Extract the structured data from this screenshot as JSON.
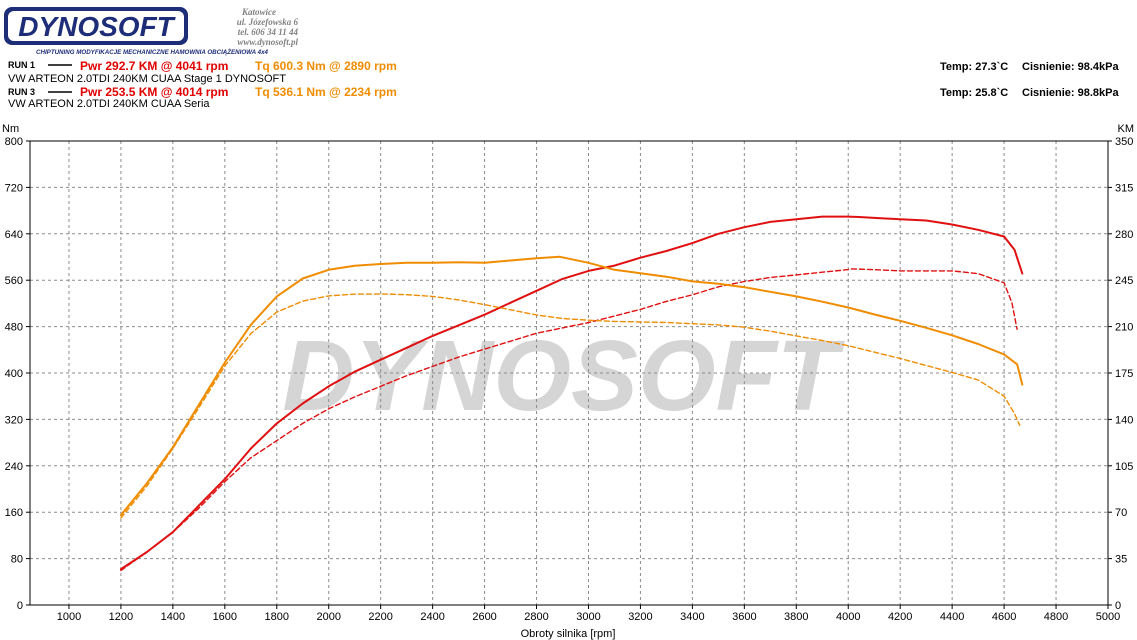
{
  "logo": {
    "brand": "DYNOSOFT",
    "city": "Katowice",
    "street": "ul. Józefowska 6",
    "phone": "tel. 606 34 11 44",
    "web": "www.dynosoft.pl",
    "tagline": "CHIPTUNING   MODYFIKACJE MECHANICZNE   HAMOWNIA OBCIĄŻENIOWA 4x4"
  },
  "runs": [
    {
      "label": "RUN 1",
      "pwr": "Pwr  292.7 KM @ 4041 rpm",
      "tq": "Tq 600.3 Nm @ 2890 rpm",
      "desc": "VW ARTEON 2.0TDI 240KM CUAA Stage 1 DYNOSOFT",
      "temp": "Temp: 27.3`C",
      "pressure": "Cisnienie: 98.4kPa"
    },
    {
      "label": "RUN 3",
      "pwr": "Pwr  253.5 KM @ 4014 rpm",
      "tq": "Tq 536.1 Nm @ 2234 rpm",
      "desc": "VW ARTEON 2.0TDI 240KM CUAA Seria",
      "temp": "Temp: 25.8`C",
      "pressure": "Cisnienie: 98.8kPa"
    }
  ],
  "colors": {
    "power": "#e01010",
    "torque": "#f08c00",
    "grid": "#8c8c8c",
    "watermark": "#c8c8c8"
  },
  "chart_data": {
    "type": "line",
    "title": "",
    "xlabel": "Obroty silnika [rpm]",
    "ylabel_left": "Nm",
    "ylabel_right": "KM",
    "xlim": [
      850,
      5000
    ],
    "ylim_left": [
      0,
      800
    ],
    "ylim_right": [
      0,
      350
    ],
    "x_ticks": [
      1000,
      1200,
      1400,
      1600,
      1800,
      2000,
      2200,
      2400,
      2600,
      2800,
      3000,
      3200,
      3400,
      3600,
      3800,
      4000,
      4200,
      4400,
      4600,
      4800,
      5000
    ],
    "y_ticks_left": [
      0,
      80,
      160,
      240,
      320,
      400,
      480,
      560,
      640,
      720,
      800
    ],
    "y_ticks_right": [
      0,
      35,
      70,
      105,
      140,
      175,
      210,
      245,
      280,
      315,
      350
    ],
    "grid": true,
    "watermark": "DYNOSOFT",
    "series": [
      {
        "name": "RUN 1 Pwr",
        "axis": "right",
        "style": "solid",
        "color": "#e01010",
        "x": [
          1200,
          1300,
          1400,
          1500,
          1600,
          1700,
          1800,
          1900,
          2000,
          2100,
          2200,
          2300,
          2400,
          2500,
          2600,
          2700,
          2800,
          2900,
          3000,
          3100,
          3200,
          3300,
          3400,
          3500,
          3600,
          3700,
          3800,
          3900,
          4000,
          4041,
          4100,
          4200,
          4300,
          4400,
          4500,
          4600,
          4640,
          4670
        ],
        "y": [
          27,
          40,
          55,
          75,
          95,
          118,
          137,
          152,
          165,
          176,
          185,
          194,
          203,
          211,
          219,
          228,
          237,
          246,
          252,
          256,
          262,
          267,
          273,
          280,
          285,
          289,
          291,
          293,
          293,
          292.7,
          292,
          291,
          290,
          287,
          283,
          278,
          268,
          250
        ]
      },
      {
        "name": "RUN 3 Pwr",
        "axis": "right",
        "style": "dashed",
        "color": "#e01010",
        "x": [
          1200,
          1300,
          1400,
          1500,
          1600,
          1700,
          1800,
          1900,
          2000,
          2100,
          2200,
          2300,
          2400,
          2500,
          2600,
          2700,
          2800,
          2900,
          3000,
          3100,
          3200,
          3300,
          3400,
          3500,
          3600,
          3700,
          3800,
          3900,
          4000,
          4014,
          4100,
          4200,
          4300,
          4400,
          4500,
          4600,
          4630,
          4650
        ],
        "y": [
          26,
          40,
          55,
          73,
          93,
          111,
          124,
          137,
          148,
          157,
          165,
          173,
          180,
          187,
          193,
          199,
          205,
          209,
          213,
          218,
          223,
          229,
          234,
          240,
          244,
          247,
          249,
          251,
          253,
          253.5,
          253,
          252,
          252,
          252,
          250,
          243,
          228,
          208
        ]
      },
      {
        "name": "RUN 1 Tq",
        "axis": "left",
        "style": "solid",
        "color": "#f08c00",
        "x": [
          1200,
          1300,
          1400,
          1500,
          1600,
          1700,
          1800,
          1900,
          2000,
          2100,
          2200,
          2300,
          2400,
          2500,
          2600,
          2700,
          2800,
          2890,
          3000,
          3100,
          3200,
          3300,
          3400,
          3500,
          3600,
          3700,
          3800,
          3900,
          4000,
          4100,
          4200,
          4300,
          4400,
          4500,
          4600,
          4650,
          4670
        ],
        "y": [
          155,
          210,
          272,
          345,
          418,
          483,
          532,
          563,
          578,
          585,
          588,
          590,
          590,
          591,
          590,
          594,
          598,
          600.3,
          590,
          578,
          572,
          566,
          558,
          554,
          548,
          540,
          532,
          523,
          513,
          501,
          490,
          478,
          465,
          450,
          432,
          415,
          380
        ]
      },
      {
        "name": "RUN 3 Tq",
        "axis": "left",
        "style": "dashed",
        "color": "#f08c00",
        "x": [
          1200,
          1300,
          1400,
          1500,
          1600,
          1700,
          1800,
          1900,
          2000,
          2100,
          2200,
          2234,
          2300,
          2400,
          2500,
          2600,
          2700,
          2800,
          2900,
          3000,
          3100,
          3200,
          3300,
          3400,
          3500,
          3600,
          3700,
          3800,
          3900,
          4000,
          4100,
          4200,
          4300,
          4400,
          4500,
          4600,
          4640,
          4660
        ],
        "y": [
          150,
          205,
          270,
          340,
          412,
          468,
          505,
          524,
          533,
          536,
          536,
          536.1,
          535,
          532,
          526,
          518,
          509,
          500,
          494,
          491,
          489,
          488,
          487,
          485,
          483,
          479,
          472,
          464,
          456,
          447,
          436,
          425,
          413,
          401,
          388,
          360,
          330,
          310
        ]
      }
    ]
  }
}
